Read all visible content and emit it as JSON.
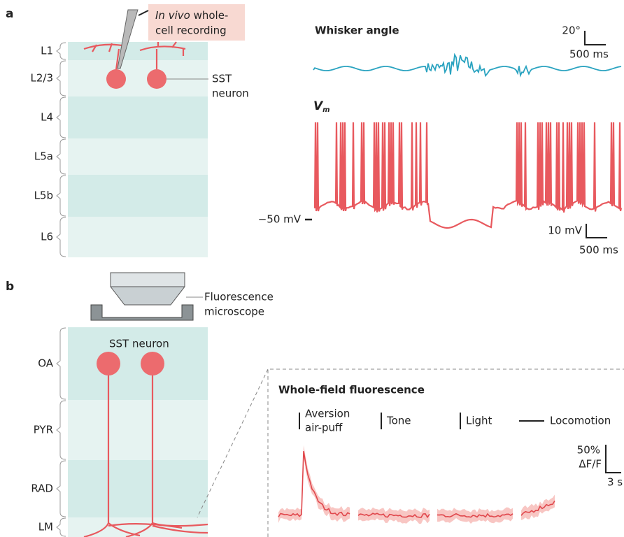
{
  "panel_a": {
    "label": "a",
    "recording_label": {
      "italic": "In vivo",
      "line1_rest": " whole-",
      "line2": "cell recording"
    },
    "layers": [
      "L1",
      "L2/3",
      "L4",
      "L5a",
      "L5b",
      "L6"
    ],
    "neuron_label": [
      "SST",
      "neuron"
    ],
    "whisker_title": "Whisker angle",
    "whisker_scale": {
      "y": "20°",
      "x": "500 ms"
    },
    "vm_label": {
      "symbol": "V",
      "subscript": "m"
    },
    "baseline_label": "−50 mV",
    "vm_scale": {
      "y": "10 mV",
      "x": "500 ms"
    }
  },
  "panel_b": {
    "label": "b",
    "microscope_label": [
      "Fluorescence",
      "microscope"
    ],
    "layers": [
      "OA",
      "PYR",
      "RAD",
      "LM"
    ],
    "neuron_label": "SST neuron",
    "fluorescence_title": "Whole-field fluorescence",
    "events": [
      [
        "Aversion",
        "air-puff"
      ],
      [
        "Tone"
      ],
      [
        "Light"
      ],
      [
        "Locomotion"
      ]
    ],
    "scale": {
      "y": [
        "50%",
        "ΔF/F"
      ],
      "x": "3 s"
    }
  }
}
